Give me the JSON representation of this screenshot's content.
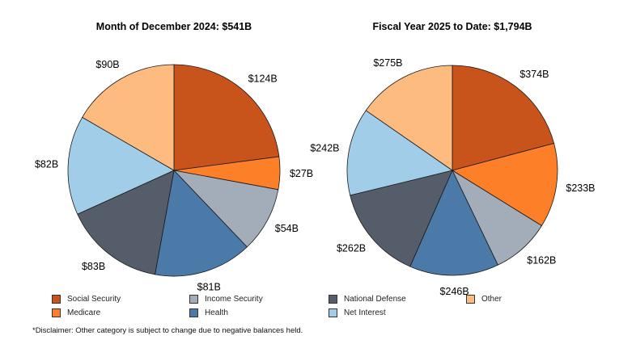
{
  "categories": [
    {
      "name": "Social Security",
      "color": "#C8531B"
    },
    {
      "name": "Medicare",
      "color": "#FD7F28"
    },
    {
      "name": "Income Security",
      "color": "#A3ACB9"
    },
    {
      "name": "Health",
      "color": "#4B79A8"
    },
    {
      "name": "National Defense",
      "color": "#555D6B"
    },
    {
      "name": "Net Interest",
      "color": "#A1CDE9"
    },
    {
      "name": "Other",
      "color": "#FEBB80"
    }
  ],
  "chart_data": [
    {
      "type": "pie",
      "title": "Month of December 2024: $541B",
      "labels": [
        "Social Security",
        "Medicare",
        "Income Security",
        "Health",
        "National Defense",
        "Net Interest",
        "Other"
      ],
      "values": [
        124,
        27,
        54,
        81,
        83,
        82,
        90
      ],
      "data_labels": [
        "$124B",
        "$27B",
        "$54B",
        "$81B",
        "$83B",
        "$82B",
        "$90B"
      ],
      "unit": "billions USD",
      "start": "top",
      "direction": "clockwise"
    },
    {
      "type": "pie",
      "title": "Fiscal Year 2025 to Date: $1,794B",
      "labels": [
        "Social Security",
        "Medicare",
        "Income Security",
        "Health",
        "National Defense",
        "Net Interest",
        "Other"
      ],
      "values": [
        374,
        233,
        162,
        246,
        262,
        242,
        275
      ],
      "data_labels": [
        "$374B",
        "$233B",
        "$162B",
        "$246B",
        "$262B",
        "$242B",
        "$275B"
      ],
      "unit": "billions USD",
      "start": "top",
      "direction": "clockwise"
    }
  ],
  "legend": {
    "placement": "bottom",
    "items": [
      "Social Security",
      "Income Security",
      "National Defense",
      "Other",
      "Medicare",
      "Health",
      "Net Interest"
    ]
  },
  "disclaimer": "*Disclaimer: Other category is subject to change due to negative balances held."
}
